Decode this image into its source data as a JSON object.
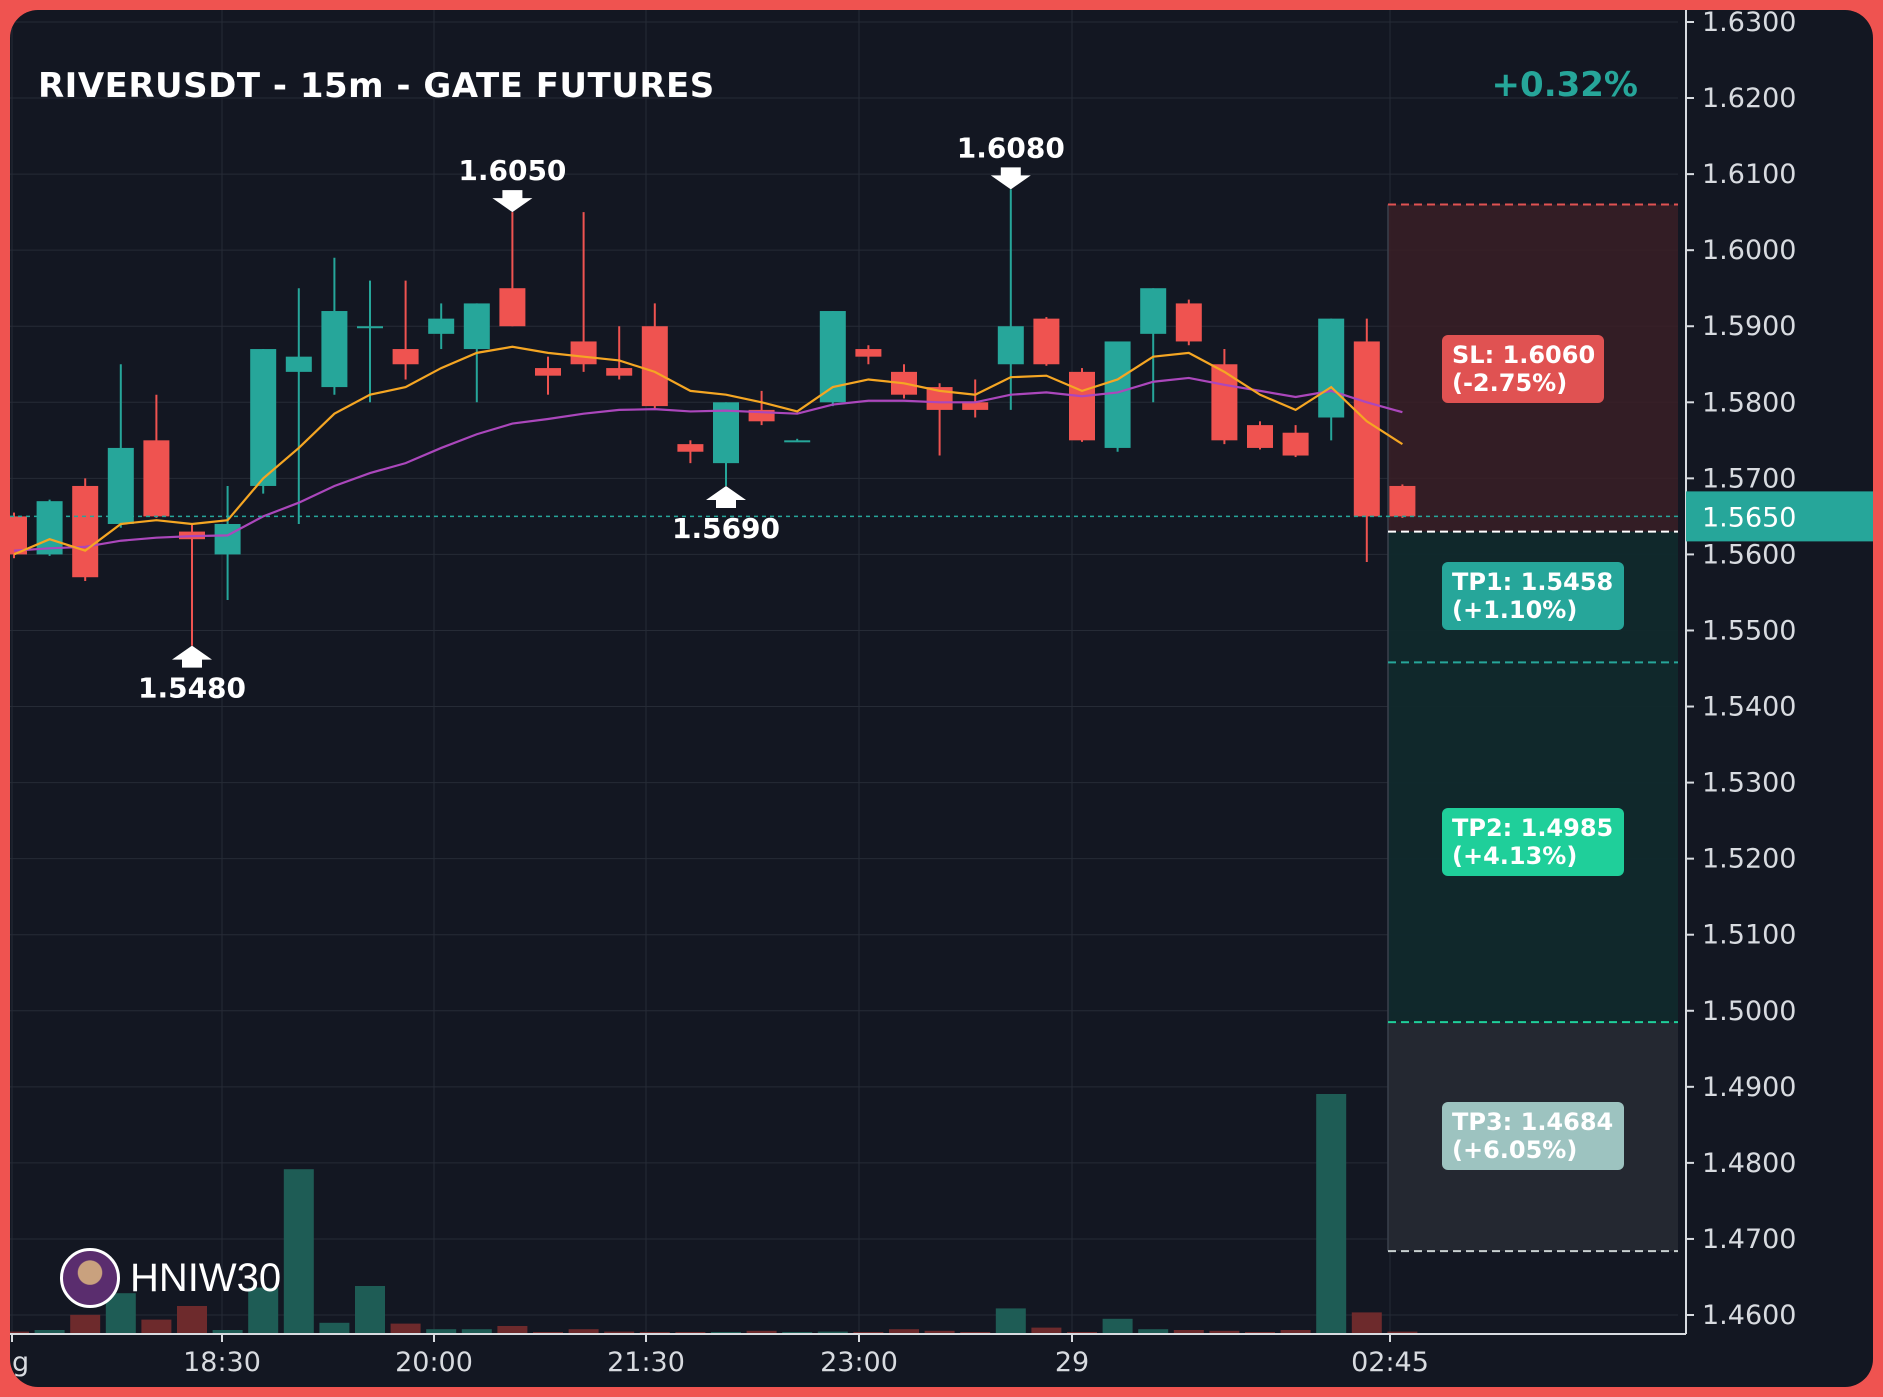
{
  "header": {
    "title": "RIVERUSDT - 15m - GATE FUTURES",
    "change": "+0.32%"
  },
  "watermark": {
    "name": "HNIW30",
    "avatar": "avatar-icon"
  },
  "colors": {
    "up": "#26a69a",
    "down": "#ef5350",
    "ema_fast": "#f5a623",
    "ema_slow": "#ab47bc",
    "background": "#131722",
    "frame": "#ef5350",
    "tp1": "#26a69a",
    "tp2": "#1fcf9a",
    "tp3": "#9dc3c0",
    "sl": "#e05252"
  },
  "chart_data": {
    "type": "candlestick",
    "title": "RIVERUSDT - 15m - GATE FUTURES",
    "ylim": [
      1.457,
      1.633
    ],
    "y_ticks": [
      "1.6300",
      "1.6200",
      "1.6100",
      "1.6000",
      "1.5900",
      "1.5800",
      "1.5700",
      "1.5600",
      "1.5500",
      "1.5400",
      "1.5300",
      "1.5200",
      "1.5100",
      "1.5000",
      "1.4900",
      "1.4800",
      "1.4700",
      "1.4600"
    ],
    "x_labels": [
      "ug",
      "18:30",
      "20:00",
      "21:30",
      "23:00",
      "29",
      "02:45"
    ],
    "current_price": "1.5650",
    "candles": [
      {
        "o": 1.565,
        "h": 1.5655,
        "l": 1.5595,
        "c": 1.56
      },
      {
        "o": 1.56,
        "h": 1.5672,
        "l": 1.5598,
        "c": 1.567
      },
      {
        "o": 1.569,
        "h": 1.57,
        "l": 1.5565,
        "c": 1.557
      },
      {
        "o": 1.564,
        "h": 1.585,
        "l": 1.5635,
        "c": 1.574
      },
      {
        "o": 1.575,
        "h": 1.581,
        "l": 1.5648,
        "c": 1.565
      },
      {
        "o": 1.563,
        "h": 1.564,
        "l": 1.548,
        "c": 1.562
      },
      {
        "o": 1.56,
        "h": 1.569,
        "l": 1.554,
        "c": 1.564
      },
      {
        "o": 1.569,
        "h": 1.587,
        "l": 1.568,
        "c": 1.587
      },
      {
        "o": 1.584,
        "h": 1.595,
        "l": 1.564,
        "c": 1.586
      },
      {
        "o": 1.582,
        "h": 1.599,
        "l": 1.581,
        "c": 1.592
      },
      {
        "o": 1.59,
        "h": 1.596,
        "l": 1.58,
        "c": 1.59
      },
      {
        "o": 1.587,
        "h": 1.596,
        "l": 1.583,
        "c": 1.585
      },
      {
        "o": 1.589,
        "h": 1.593,
        "l": 1.587,
        "c": 1.591
      },
      {
        "o": 1.587,
        "h": 1.593,
        "l": 1.58,
        "c": 1.593
      },
      {
        "o": 1.595,
        "h": 1.605,
        "l": 1.59,
        "c": 1.59
      },
      {
        "o": 1.5845,
        "h": 1.586,
        "l": 1.581,
        "c": 1.5835
      },
      {
        "o": 1.588,
        "h": 1.605,
        "l": 1.584,
        "c": 1.585
      },
      {
        "o": 1.5845,
        "h": 1.59,
        "l": 1.583,
        "c": 1.5835
      },
      {
        "o": 1.59,
        "h": 1.593,
        "l": 1.579,
        "c": 1.5795
      },
      {
        "o": 1.5745,
        "h": 1.575,
        "l": 1.572,
        "c": 1.5735
      },
      {
        "o": 1.572,
        "h": 1.58,
        "l": 1.569,
        "c": 1.58
      },
      {
        "o": 1.579,
        "h": 1.5815,
        "l": 1.577,
        "c": 1.5775
      },
      {
        "o": 1.575,
        "h": 1.5752,
        "l": 1.5748,
        "c": 1.575
      },
      {
        "o": 1.58,
        "h": 1.592,
        "l": 1.5795,
        "c": 1.592
      },
      {
        "o": 1.587,
        "h": 1.5875,
        "l": 1.585,
        "c": 1.586
      },
      {
        "o": 1.584,
        "h": 1.585,
        "l": 1.5805,
        "c": 1.581
      },
      {
        "o": 1.582,
        "h": 1.5825,
        "l": 1.573,
        "c": 1.579
      },
      {
        "o": 1.58,
        "h": 1.583,
        "l": 1.578,
        "c": 1.579
      },
      {
        "o": 1.585,
        "h": 1.608,
        "l": 1.579,
        "c": 1.59
      },
      {
        "o": 1.591,
        "h": 1.5912,
        "l": 1.5848,
        "c": 1.585
      },
      {
        "o": 1.584,
        "h": 1.5845,
        "l": 1.5748,
        "c": 1.575
      },
      {
        "o": 1.574,
        "h": 1.588,
        "l": 1.5735,
        "c": 1.588
      },
      {
        "o": 1.589,
        "h": 1.595,
        "l": 1.58,
        "c": 1.595
      },
      {
        "o": 1.593,
        "h": 1.5935,
        "l": 1.5875,
        "c": 1.588
      },
      {
        "o": 1.585,
        "h": 1.587,
        "l": 1.5745,
        "c": 1.575
      },
      {
        "o": 1.577,
        "h": 1.5775,
        "l": 1.5738,
        "c": 1.574
      },
      {
        "o": 1.576,
        "h": 1.577,
        "l": 1.5728,
        "c": 1.573
      },
      {
        "o": 1.578,
        "h": 1.591,
        "l": 1.575,
        "c": 1.591
      },
      {
        "o": 1.588,
        "h": 1.591,
        "l": 1.559,
        "c": 1.565
      },
      {
        "o": 1.569,
        "h": 1.5692,
        "l": 1.5648,
        "c": 1.565
      }
    ],
    "ema_fast": [
      1.56,
      1.562,
      1.5605,
      1.564,
      1.5645,
      1.564,
      1.5645,
      1.57,
      1.574,
      1.5785,
      1.581,
      1.582,
      1.5845,
      1.5865,
      1.5873,
      1.5865,
      1.586,
      1.5855,
      1.584,
      1.5815,
      1.581,
      1.58,
      1.5788,
      1.582,
      1.583,
      1.5825,
      1.5815,
      1.581,
      1.5833,
      1.5835,
      1.5815,
      1.583,
      1.586,
      1.5865,
      1.584,
      1.581,
      1.579,
      1.582,
      1.5775,
      1.5745
    ],
    "ema_slow": [
      1.5605,
      1.5608,
      1.561,
      1.5618,
      1.5622,
      1.5624,
      1.5625,
      1.565,
      1.5668,
      1.569,
      1.5707,
      1.572,
      1.574,
      1.5758,
      1.5772,
      1.5778,
      1.5785,
      1.579,
      1.5791,
      1.5788,
      1.5789,
      1.5787,
      1.5785,
      1.5797,
      1.5802,
      1.5802,
      1.58,
      1.58,
      1.581,
      1.5813,
      1.5808,
      1.5813,
      1.5827,
      1.5832,
      1.5823,
      1.5815,
      1.5807,
      1.5815,
      1.58,
      1.5787
    ],
    "volume": [
      0.3,
      0.5,
      2.4,
      5.1,
      1.8,
      3.5,
      0.5,
      5.8,
      20.6,
      1.4,
      6.0,
      1.3,
      0.6,
      0.6,
      1.0,
      0.1,
      0.6,
      0.3,
      0.2,
      0.1,
      0.2,
      0.4,
      0.1,
      0.3,
      0.1,
      0.6,
      0.4,
      0.1,
      3.2,
      0.8,
      0.2,
      1.9,
      0.6,
      0.5,
      0.4,
      0.1,
      0.5,
      30.0,
      2.7,
      0.3
    ],
    "markers": [
      {
        "label": "1.6050",
        "index": 14,
        "price": 1.605,
        "position": "above"
      },
      {
        "label": "1.6080",
        "index": 28,
        "price": 1.608,
        "position": "above"
      },
      {
        "label": "1.5480",
        "index": 5,
        "price": 1.548,
        "position": "below"
      },
      {
        "label": "1.5690",
        "index": 20,
        "price": 1.569,
        "position": "below"
      }
    ],
    "levels": [
      {
        "name": "SL",
        "price": 1.606,
        "label": "SL: 1.6060\n(-2.75%)",
        "color": "#e05252"
      },
      {
        "name": "Entry",
        "price": 1.563,
        "color": "#ffffff"
      },
      {
        "name": "TP1",
        "price": 1.5458,
        "label": "TP1: 1.5458\n(+1.10%)",
        "color": "#26a69a"
      },
      {
        "name": "TP2",
        "price": 1.4985,
        "label": "TP2: 1.4985\n(+4.13%)",
        "color": "#1fcf9a"
      },
      {
        "name": "TP3",
        "price": 1.4684,
        "label": "TP3: 1.4684\n(+6.05%)",
        "color": "#9dc3c0"
      }
    ]
  }
}
